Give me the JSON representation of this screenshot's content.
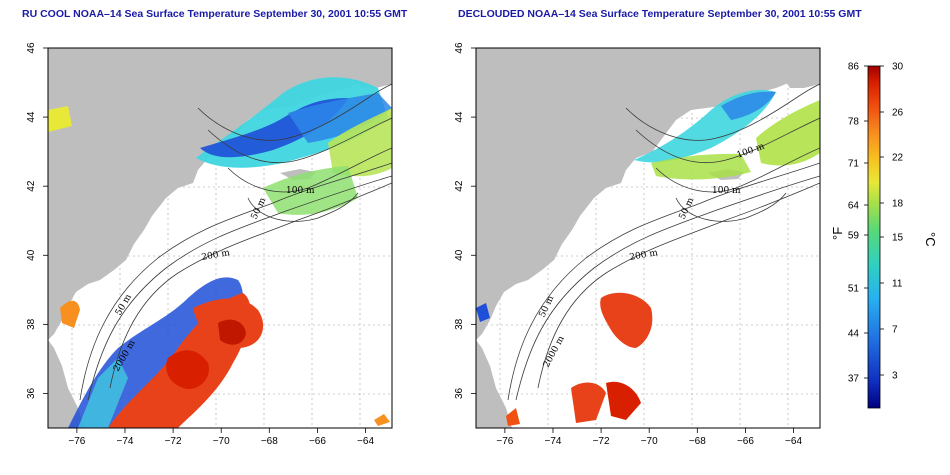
{
  "panels": [
    {
      "id": "left",
      "title": "RU COOL NOAA–14 Sea Surface Temperature September 30, 2001 10:55 GMT",
      "contour_labels": [
        "100 m",
        "50 m",
        "200 m",
        "50 m",
        "2000 m"
      ]
    },
    {
      "id": "right",
      "title": "DECLOUDED NOAA–14 Sea Surface Temperature September 30, 2001 10:55 GMT",
      "contour_labels": [
        "100 m",
        "100 m",
        "50 m",
        "200 m",
        "50 m",
        "2000 m"
      ]
    }
  ],
  "axes": {
    "x_ticks": [
      "−76",
      "−74",
      "−72",
      "−70",
      "−68",
      "−66",
      "−64"
    ],
    "x_values": [
      -76,
      -74,
      -72,
      -70,
      -68,
      -66,
      -64
    ],
    "y_ticks": [
      "36",
      "38",
      "40",
      "42",
      "44",
      "46"
    ],
    "y_values": [
      36,
      38,
      40,
      42,
      44,
      46
    ],
    "lon_range": [
      -77.2,
      -62.9
    ],
    "lat_range": [
      35,
      46
    ]
  },
  "colorbar": {
    "fahrenheit_ticks": [
      "86",
      "78",
      "71",
      "64",
      "59",
      "51",
      "44",
      "37"
    ],
    "celsius_ticks": [
      "30",
      "26",
      "22",
      "18",
      "15",
      "11",
      "7",
      "3"
    ],
    "fahrenheit_unit": "°F",
    "celsius_unit": "°C",
    "colors": [
      "#a00000",
      "#d82000",
      "#f05010",
      "#f89020",
      "#f8c020",
      "#e8e838",
      "#a8e048",
      "#58d878",
      "#30d0c0",
      "#28b0f0",
      "#2070e0",
      "#1030c0",
      "#000080"
    ]
  },
  "colors": {
    "land": "#bebebe",
    "warm": "#e8421a",
    "cold": "#1e4fd8",
    "mid": "#3fd6e0",
    "title": "#1a1aa6"
  }
}
